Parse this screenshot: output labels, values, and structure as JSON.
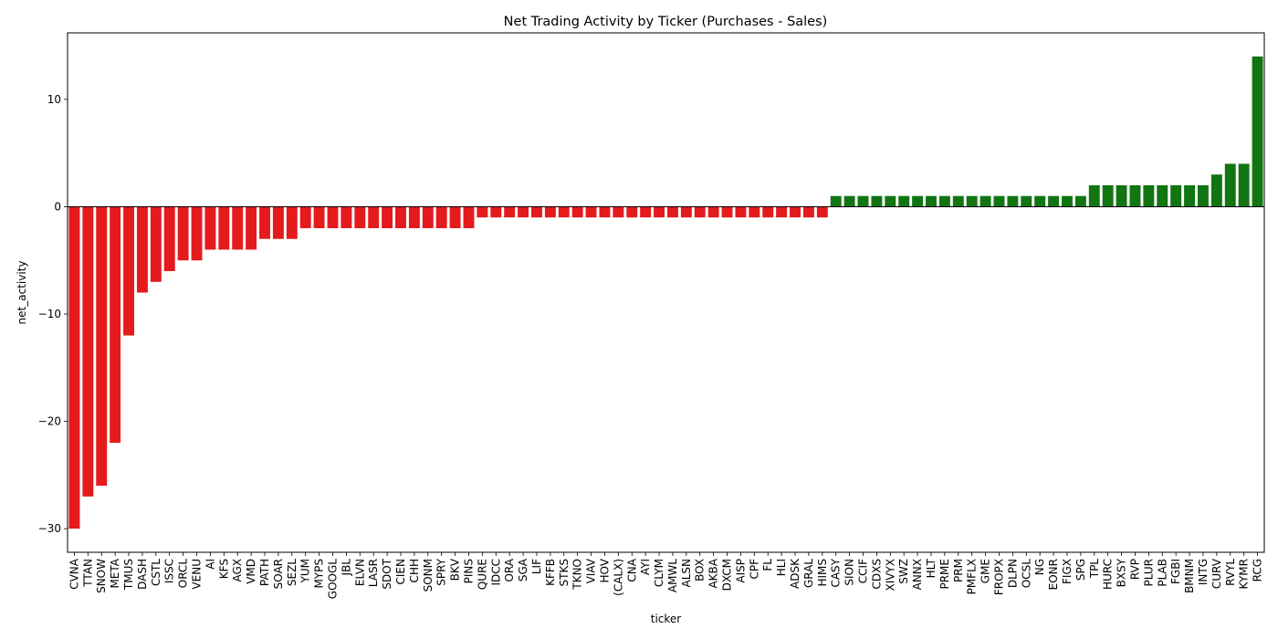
{
  "chart_data": {
    "type": "bar",
    "title": "Net Trading Activity by Ticker (Purchases - Sales)",
    "xlabel": "ticker",
    "ylabel": "net_activity",
    "ylim": [
      -32.2,
      16.2
    ],
    "yticks": [
      -30,
      -20,
      -10,
      0,
      10
    ],
    "grid": false,
    "colors": {
      "negative": "#e41a1c",
      "positive": "#117511",
      "zero_line": "#000000"
    },
    "categories": [
      "CVNA",
      "TTAN",
      "SNOW",
      "META",
      "TMUS",
      "DASH",
      "CSTL",
      "ISSC",
      "ORCL",
      "VENU",
      "AI",
      "KFS",
      "AGX",
      "VMD",
      "PATH",
      "SOAR",
      "SEZL",
      "YUM",
      "MYPS",
      "GOOGL",
      "JBL",
      "ELVN",
      "LASR",
      "SDOT",
      "CIEN",
      "CHH",
      "SONM",
      "SPRY",
      "BKV",
      "PINS",
      "QURE",
      "IDCC",
      "ORA",
      "SGA",
      "LIF",
      "KFFB",
      "STKS",
      "TKNO",
      "VIAV",
      "HOV",
      "(CALX)",
      "CNA",
      "AYI",
      "CLYM",
      "AMWL",
      "ALSN",
      "BOX",
      "AKBA",
      "DXCM",
      "AISP",
      "CPF",
      "FL",
      "HLI",
      "ADSK",
      "GRAL",
      "HIMS",
      "CASY",
      "SION",
      "CCIF",
      "CDXS",
      "XIVYX",
      "SWZ",
      "ANNX",
      "HLT",
      "PRME",
      "PRM",
      "PMFLX",
      "GME",
      "FROPX",
      "DLPN",
      "OCSL",
      "NG",
      "EONR",
      "FIGX",
      "SPG",
      "TPL",
      "HURC",
      "BXSY",
      "RVP",
      "PLUR",
      "PLAB",
      "FGBI",
      "BMNM",
      "INTG",
      "CURV",
      "RVYL",
      "KYMR",
      "RCG"
    ],
    "values": [
      -30,
      -27,
      -26,
      -22,
      -12,
      -8,
      -7,
      -6,
      -5,
      -5,
      -4,
      -4,
      -4,
      -4,
      -3,
      -3,
      -3,
      -2,
      -2,
      -2,
      -2,
      -2,
      -2,
      -2,
      -2,
      -2,
      -2,
      -2,
      -2,
      -2,
      -1,
      -1,
      -1,
      -1,
      -1,
      -1,
      -1,
      -1,
      -1,
      -1,
      -1,
      -1,
      -1,
      -1,
      -1,
      -1,
      -1,
      -1,
      -1,
      -1,
      -1,
      -1,
      -1,
      -1,
      -1,
      -1,
      1,
      1,
      1,
      1,
      1,
      1,
      1,
      1,
      1,
      1,
      1,
      1,
      1,
      1,
      1,
      1,
      1,
      1,
      1,
      2,
      2,
      2,
      2,
      2,
      2,
      2,
      2,
      2,
      3,
      4,
      4,
      14
    ]
  }
}
